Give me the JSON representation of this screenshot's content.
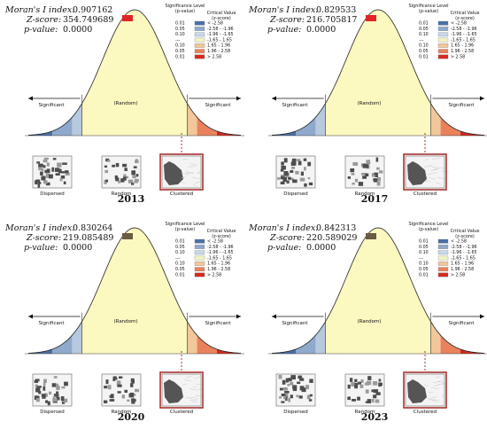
{
  "chart_data": [
    {
      "type": "normal-curve",
      "year": "2013",
      "stats": {
        "moran_label": "Moran's I index:",
        "moran_value": "0.907162",
        "z_label": "Z-score:",
        "z_value": "354.749689",
        "p_label": "p-value:",
        "p_value": "0.0000",
        "indicator_color": "#e02424"
      },
      "highlight": "clustered",
      "map_color": "#555555"
    },
    {
      "type": "normal-curve",
      "year": "2017",
      "stats": {
        "moran_label": "Moran's I index:",
        "moran_value": "0.829533",
        "z_label": "Z-score:",
        "z_value": "216.705817",
        "p_label": "p-value:",
        "p_value": "0.0000",
        "indicator_color": "#e02424"
      },
      "highlight": "clustered",
      "map_color": "#555555"
    },
    {
      "type": "normal-curve",
      "year": "2020",
      "stats": {
        "moran_label": "Moran's I index:",
        "moran_value": "0.830264",
        "z_label": "Z-score:",
        "z_value": "219.085489",
        "p_label": "p-value:",
        "p_value": "0.0000",
        "indicator_color": "#6b5a44"
      },
      "highlight": "clustered",
      "map_color": "#555555"
    },
    {
      "type": "normal-curve",
      "year": "2023",
      "stats": {
        "moran_label": "Moran's I index:",
        "moran_value": "0.842313",
        "z_label": "Z-score:",
        "z_value": "220.589029",
        "p_label": "p-value:",
        "p_value": "0.0000",
        "indicator_color": "#6b5a44"
      },
      "highlight": "clustered",
      "map_color": "#555555"
    }
  ],
  "legend": {
    "sig_header_1": "Significance Level",
    "sig_header_2": "(p-value)",
    "crit_header_1": "Critical Value",
    "crit_header_2": "(z-score)",
    "rows": [
      {
        "p": "0.01",
        "z": "< -2.58",
        "color": "#4a6fa5"
      },
      {
        "p": "0.05",
        "z": "-2.58 - -1.96",
        "color": "#8fa9cc"
      },
      {
        "p": "0.10",
        "z": "-1.96 - -1.65",
        "color": "#c8d8e8"
      },
      {
        "p": "---",
        "z": "-1.65 - 1.65",
        "color": "#f2f2c4"
      },
      {
        "p": "0.10",
        "z": "1.65 - 1.96",
        "color": "#f2c79a"
      },
      {
        "p": "0.05",
        "z": "1.96 - 2.58",
        "color": "#e9825c"
      },
      {
        "p": "0.01",
        "z": "> 2.58",
        "color": "#d42a1f"
      }
    ]
  },
  "curve_labels": {
    "significant_left": "Significant",
    "random": "(Random)",
    "significant_right": "Significant"
  },
  "pattern_labels": [
    "Dispersed",
    "Random",
    "Clustered"
  ],
  "colors": {
    "curve_fill": "#fbf8c0",
    "left_tail_dark": "#4a6fa5",
    "left_tail_light": "#b7c9de",
    "right_tail_1": "#f2c79a",
    "right_tail_2": "#e9825c",
    "right_tail_3": "#d42a1f",
    "highlight_box": "#a83232",
    "dotted_line": "#a83232"
  }
}
